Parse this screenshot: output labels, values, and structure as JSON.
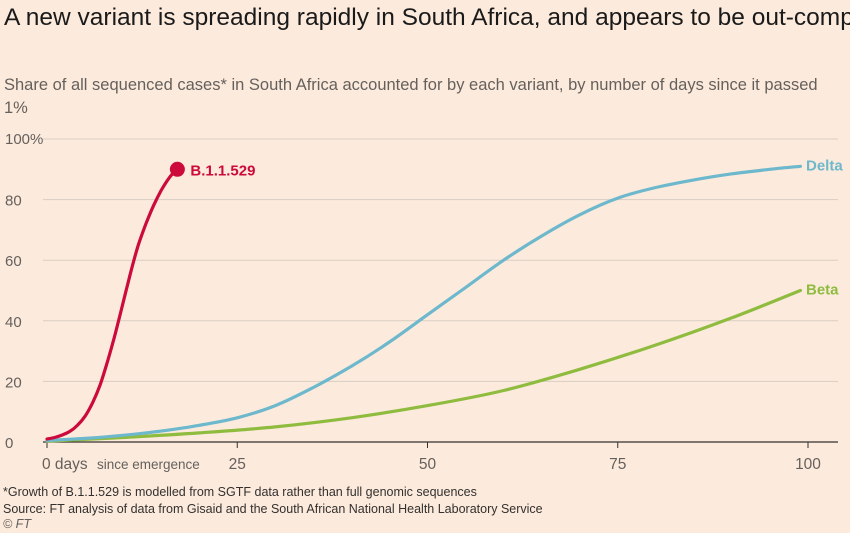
{
  "title": "A new variant is spreading rapidly in South Africa, and appears to be out-competing other variants much faster than previous variants of concern did",
  "subtitle": "Share of all sequenced cases* in South Africa accounted for by each variant, by number of days since it passed 1%",
  "footnote": "*Growth of B.1.1.529 is modelled from SGTF data rather than full genomic sequences",
  "source": "Source: FT analysis of data from Gisaid and the South African National Health Laboratory Service",
  "copyright": "© FT",
  "chart_data": {
    "type": "line",
    "title": "A new variant is spreading rapidly in South Africa, and appears to be out-competing other variants much faster than previous variants of concern did",
    "subtitle": "Share of all sequenced cases* in South Africa accounted for by each variant, by number of days since it passed 1%",
    "xlabel": "since emergence",
    "ylabel": "",
    "xlim": [
      0,
      100
    ],
    "ylim": [
      0,
      100
    ],
    "x_ticks": [
      {
        "value": 0,
        "label": "0 days"
      },
      {
        "value": 25,
        "label": "25"
      },
      {
        "value": 50,
        "label": "50"
      },
      {
        "value": 75,
        "label": "75"
      },
      {
        "value": 100,
        "label": "100"
      }
    ],
    "y_ticks": [
      {
        "value": 0,
        "label": "0"
      },
      {
        "value": 20,
        "label": "20"
      },
      {
        "value": 40,
        "label": "40"
      },
      {
        "value": 60,
        "label": "60"
      },
      {
        "value": 80,
        "label": "80"
      },
      {
        "value": 100,
        "label": "100%"
      }
    ],
    "grid": "horizontal",
    "legend": "direct labels at line ends",
    "series": [
      {
        "name": "B.1.1.529",
        "color": "#cc0a3b",
        "x": [
          0,
          1,
          2,
          3,
          4,
          5,
          6,
          7,
          8,
          9,
          10,
          11,
          12,
          13,
          14,
          15,
          16,
          17
        ],
        "y": [
          1,
          1.5,
          2.3,
          3.5,
          5.5,
          8.5,
          13,
          19,
          27,
          36,
          46,
          56,
          65,
          72,
          78,
          83,
          87,
          90
        ],
        "end_marker": "dot"
      },
      {
        "name": "Delta",
        "color": "#6db8cc",
        "x": [
          0,
          5,
          10,
          15,
          20,
          25,
          30,
          35,
          40,
          45,
          50,
          55,
          60,
          65,
          70,
          75,
          80,
          85,
          90,
          95,
          99
        ],
        "y": [
          0.5,
          1.2,
          2.2,
          3.6,
          5.5,
          8,
          12,
          18,
          25,
          33,
          42,
          51,
          60,
          68,
          75,
          80.5,
          84,
          86.5,
          88.5,
          90,
          91
        ]
      },
      {
        "name": "Beta",
        "color": "#8fbc3f",
        "x": [
          0,
          10,
          20,
          30,
          40,
          50,
          60,
          70,
          80,
          90,
          99
        ],
        "y": [
          0.3,
          1.5,
          3,
          5,
          8,
          12,
          17,
          24,
          32,
          41,
          50
        ]
      }
    ]
  },
  "colors": {
    "background": "#fcebdd",
    "grid": "#d9cdc2",
    "axis": "#33302e",
    "tick_text": "#66605c"
  }
}
